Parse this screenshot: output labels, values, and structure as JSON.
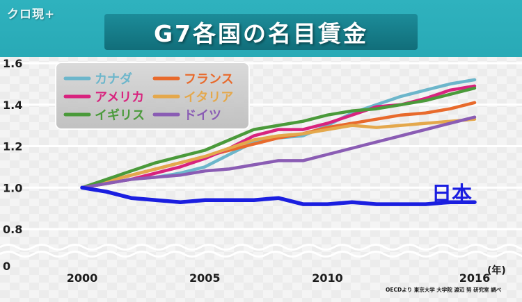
{
  "program_logo": "クロ現+",
  "chart_data": {
    "type": "line",
    "title": "G7各国の名目賃金",
    "x": [
      2000,
      2001,
      2002,
      2003,
      2004,
      2005,
      2006,
      2007,
      2008,
      2009,
      2010,
      2011,
      2012,
      2013,
      2014,
      2015,
      2016
    ],
    "x_tick_labels": [
      "2000",
      "2005",
      "2010",
      "2016"
    ],
    "x_unit": "(年)",
    "y_tick_labels": [
      "1.6",
      "1.4",
      "1.2",
      "1.0",
      "0.8",
      "0"
    ],
    "ylim": [
      0.8,
      1.6
    ],
    "y_axis_break": true,
    "xlabel": "",
    "ylabel": "",
    "legend_position": "top-left",
    "series": [
      {
        "name": "カナダ",
        "color": "#6cb6cb",
        "values": [
          1.0,
          1.02,
          1.04,
          1.05,
          1.07,
          1.1,
          1.16,
          1.22,
          1.24,
          1.25,
          1.3,
          1.36,
          1.4,
          1.44,
          1.47,
          1.5,
          1.52
        ]
      },
      {
        "name": "フランス",
        "color": "#e86a2c",
        "values": [
          1.0,
          1.03,
          1.06,
          1.09,
          1.12,
          1.15,
          1.18,
          1.21,
          1.24,
          1.26,
          1.29,
          1.31,
          1.33,
          1.35,
          1.36,
          1.38,
          1.41
        ]
      },
      {
        "name": "アメリカ",
        "color": "#d8237e",
        "values": [
          1.0,
          1.02,
          1.04,
          1.07,
          1.1,
          1.14,
          1.19,
          1.25,
          1.28,
          1.28,
          1.31,
          1.35,
          1.39,
          1.4,
          1.43,
          1.47,
          1.49
        ]
      },
      {
        "name": "イタリア",
        "color": "#e4a84c",
        "values": [
          1.0,
          1.03,
          1.06,
          1.09,
          1.12,
          1.15,
          1.19,
          1.23,
          1.25,
          1.26,
          1.28,
          1.3,
          1.29,
          1.3,
          1.31,
          1.32,
          1.33
        ]
      },
      {
        "name": "イギリス",
        "color": "#4a9a3a",
        "values": [
          1.0,
          1.04,
          1.08,
          1.12,
          1.15,
          1.18,
          1.23,
          1.28,
          1.3,
          1.32,
          1.35,
          1.37,
          1.38,
          1.4,
          1.42,
          1.45,
          1.48
        ]
      },
      {
        "name": "ドイツ",
        "color": "#8a5cb4",
        "values": [
          1.0,
          1.02,
          1.04,
          1.05,
          1.06,
          1.08,
          1.09,
          1.11,
          1.13,
          1.13,
          1.16,
          1.19,
          1.22,
          1.25,
          1.28,
          1.31,
          1.34
        ]
      },
      {
        "name": "日本",
        "color": "#1a1ee0",
        "values": [
          1.0,
          0.98,
          0.95,
          0.94,
          0.93,
          0.94,
          0.94,
          0.94,
          0.95,
          0.92,
          0.92,
          0.93,
          0.92,
          0.92,
          0.92,
          0.93,
          0.93
        ]
      }
    ],
    "annotations": [
      "日本"
    ]
  },
  "source_note": "OECDより 東京大学 大学院 渡辺 努 研究室 調べ"
}
